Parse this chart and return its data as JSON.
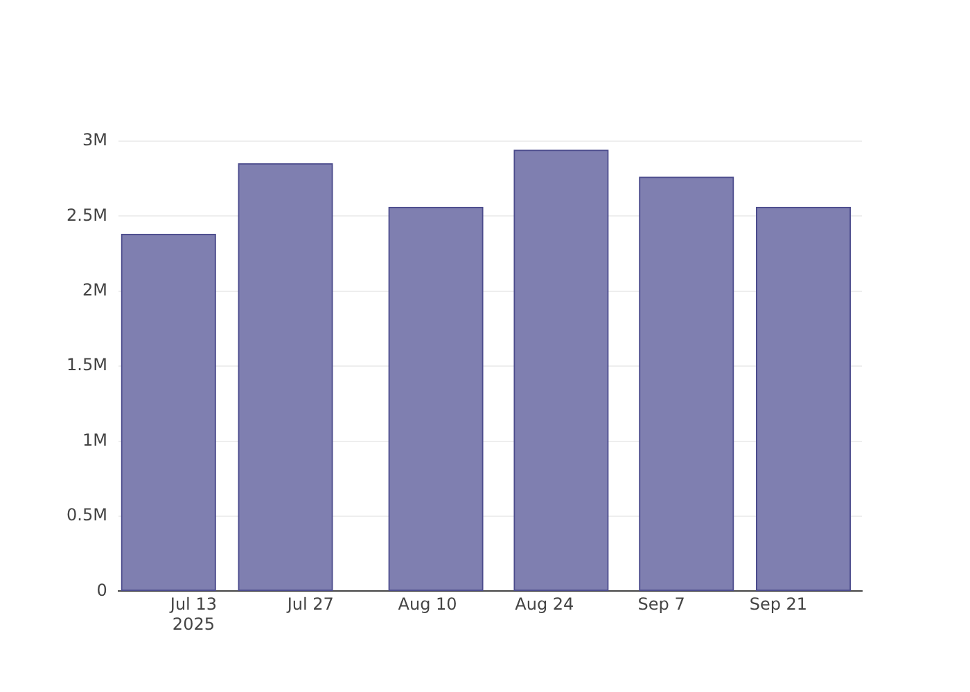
{
  "chart_data": {
    "type": "bar",
    "x": [
      "2025-07-10",
      "2025-07-24",
      "2025-08-11",
      "2025-08-26",
      "2025-09-10",
      "2025-09-24"
    ],
    "series": [
      {
        "color": "#7f7fb0",
        "values": [
          2380000,
          2850000,
          2560000,
          2940000,
          2760000,
          2560000
        ]
      }
    ],
    "xlim": [
      "2025-07-04",
      "2025-10-01"
    ],
    "xticks": [
      {
        "value": "2025-07-13",
        "label": "Jul 13\n2025"
      },
      {
        "value": "2025-07-27",
        "label": "Jul 27"
      },
      {
        "value": "2025-08-10",
        "label": "Aug 10"
      },
      {
        "value": "2025-08-24",
        "label": "Aug 24"
      },
      {
        "value": "2025-09-07",
        "label": "Sep 7"
      },
      {
        "value": "2025-09-21",
        "label": "Sep 21"
      }
    ],
    "ylim": [
      0,
      3000000
    ],
    "yticks": [
      0,
      {
        "value": 500000,
        "label": "0.5M"
      },
      {
        "value": 1000000,
        "label": "1M"
      },
      {
        "value": 1500000,
        "label": "1.5M"
      },
      {
        "value": 2000000,
        "label": "2M"
      },
      {
        "value": 2500000,
        "label": "2.5M"
      },
      {
        "value": 3000000,
        "label": "3M"
      }
    ],
    "grid": "y"
  }
}
